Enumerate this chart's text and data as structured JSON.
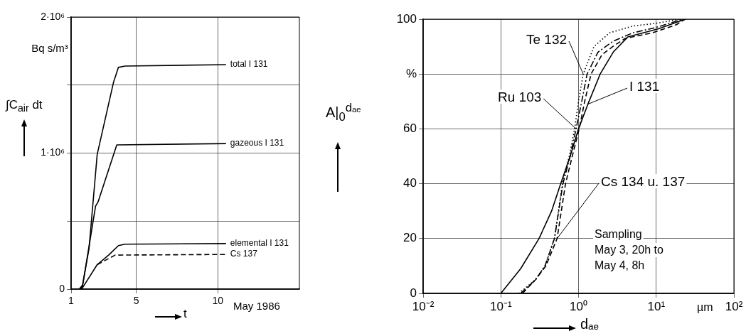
{
  "chart_data": [
    {
      "type": "line",
      "xlabel": "t",
      "ylabel": "∫C$_{air}$ dt",
      "annotations": [
        "Bq s/m³",
        "May 1986"
      ],
      "xlim": [
        1,
        15
      ],
      "xticks": [
        1,
        5,
        10
      ],
      "ylim": [
        0,
        2000000
      ],
      "yticks": [
        {
          "value": 0,
          "label": "0"
        },
        {
          "value": 500000,
          "label": null
        },
        {
          "value": 1000000,
          "label": "1·10⁶"
        },
        {
          "value": 1500000,
          "label": null
        },
        {
          "value": 2000000,
          "label": "2·10⁶"
        }
      ],
      "grid": true,
      "legend": false,
      "series": [
        {
          "name": "total I 131",
          "color": "#000000",
          "line_style": "solid",
          "x": [
            1,
            1.5,
            1.7,
            2.1,
            2.6,
            3.6,
            3.9,
            4.3,
            10.5
          ],
          "values": [
            0,
            0,
            30000,
            300000,
            990000,
            1520000,
            1630000,
            1640000,
            1650000
          ]
        },
        {
          "name": "gazeous I 131",
          "color": "#000000",
          "line_style": "solid",
          "x": [
            1,
            1.5,
            1.7,
            2.5,
            2.65,
            3.8,
            10.5
          ],
          "values": [
            0,
            0,
            20000,
            610000,
            640000,
            1060000,
            1070000
          ]
        },
        {
          "name": "elemental I 131",
          "color": "#000000",
          "line_style": "solid",
          "x": [
            1,
            1.5,
            1.7,
            2.6,
            3.3,
            3.9,
            4.3,
            10.5
          ],
          "values": [
            0,
            0,
            10000,
            180000,
            250000,
            320000,
            330000,
            335000
          ]
        },
        {
          "name": "Cs 137",
          "color": "#000000",
          "line_style": "dashed",
          "x": [
            2.6,
            3.7,
            10.5
          ],
          "values": [
            180000,
            250000,
            255000
          ]
        }
      ]
    },
    {
      "type": "line",
      "xlabel": "dₐₑ",
      "ylabel": "A|$_{0}$$^{dₐₑ}$",
      "annotations": [
        "µm",
        "Sampling\nMay 3, 20h to\nMay 4, 8h"
      ],
      "log": "x",
      "xlim": [
        0.01,
        100
      ],
      "xticks": [
        {
          "value": 0.01,
          "label": "10⁻²"
        },
        {
          "value": 0.1,
          "label": "10⁻¹"
        },
        {
          "value": 1,
          "label": "10⁰"
        },
        {
          "value": 10,
          "label": "10¹"
        },
        {
          "value": 100,
          "label": "10²"
        }
      ],
      "ylim": [
        0,
        100
      ],
      "yticks": [
        0,
        20,
        40,
        60,
        {
          "value": 80,
          "label": "%"
        },
        100
      ],
      "grid": true,
      "legend": false,
      "series": [
        {
          "name": "I 131",
          "color": "#000000",
          "line_style": "solid",
          "x": [
            0.1,
            0.18,
            0.31,
            0.45,
            0.59,
            0.78,
            1.0,
            1.32,
            1.9,
            2.8,
            4.3,
            10.7,
            21.9,
            24
          ],
          "values": [
            0,
            9,
            20,
            30,
            40,
            50,
            60,
            69,
            80,
            88,
            93.5,
            96.5,
            99.7,
            100
          ]
        },
        {
          "name": "Cs 134 u. 137",
          "color": "#000000",
          "line_style": "dashed",
          "x": [
            0.19,
            0.28,
            0.38,
            0.53,
            0.68,
            0.83,
            1.02,
            1.2,
            1.45,
            2.0,
            2.75,
            4.0,
            8.9,
            18.2,
            23.4
          ],
          "values": [
            0,
            5,
            10,
            20,
            40,
            50,
            60,
            70,
            80,
            87,
            90,
            93,
            95,
            98,
            100
          ]
        },
        {
          "name": "Ru 103",
          "color": "#000000",
          "line_style": "dashdot",
          "x": [
            0.18,
            0.28,
            0.37,
            0.49,
            0.63,
            0.78,
            0.93,
            1.1,
            1.29,
            1.78,
            2.8,
            5.0,
            10,
            22
          ],
          "values": [
            0,
            5,
            10,
            20,
            40,
            50,
            60,
            70,
            80,
            88,
            92,
            95,
            97,
            100
          ]
        },
        {
          "name": "Te 132",
          "color": "#000000",
          "line_style": "dotted",
          "x": [
            0.17,
            0.28,
            0.37,
            0.49,
            0.62,
            0.76,
            0.89,
            1.0,
            1.15,
            1.58,
            2.5,
            5.0,
            10,
            20
          ],
          "values": [
            0,
            5,
            10,
            20,
            40,
            50,
            60,
            70,
            80,
            90,
            95,
            97.5,
            98.5,
            100
          ]
        }
      ]
    }
  ]
}
